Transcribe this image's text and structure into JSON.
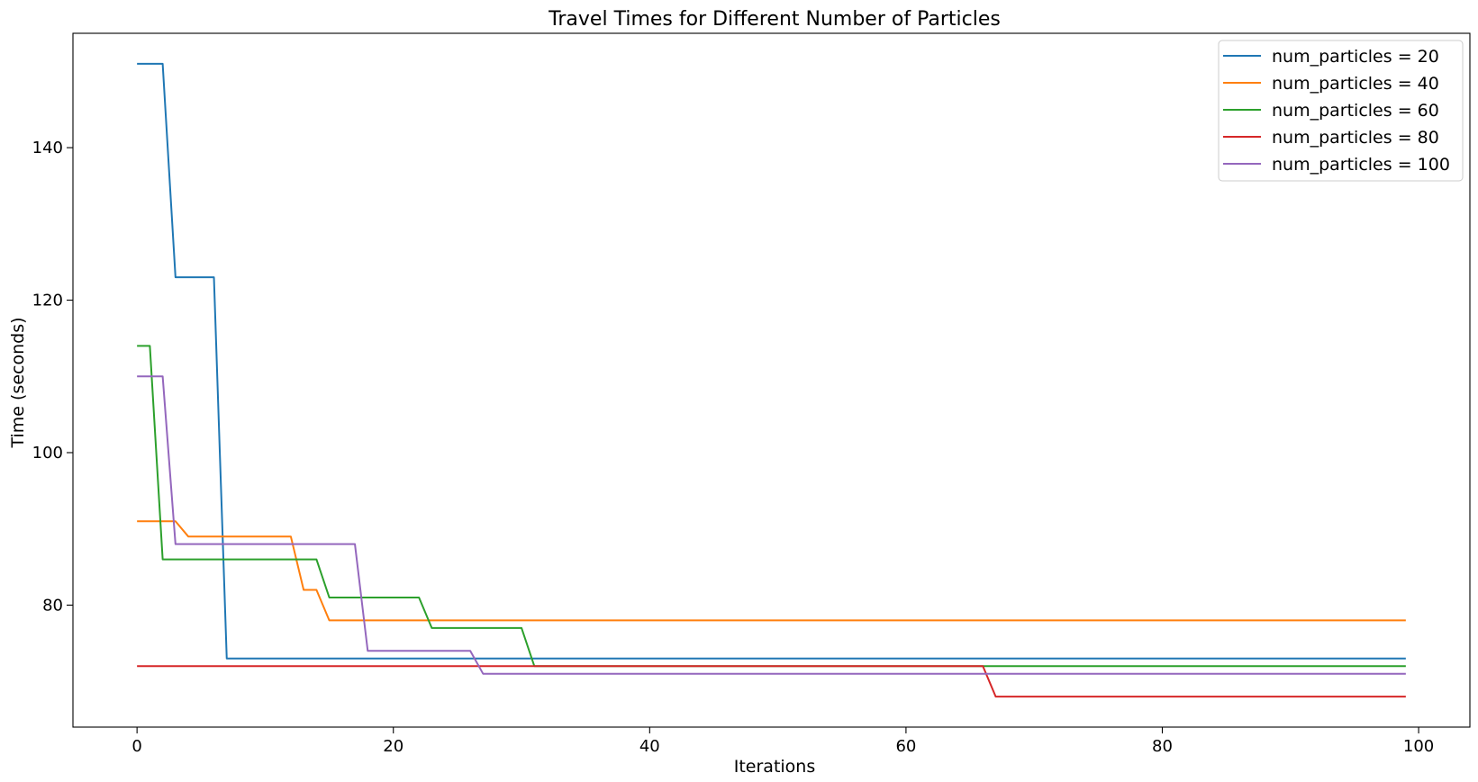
{
  "chart_data": {
    "type": "line",
    "title": "Travel Times for Different Number of Particles",
    "xlabel": "Iterations",
    "ylabel": "Time (seconds)",
    "xlim": [
      -5,
      104
    ],
    "ylim": [
      64,
      155
    ],
    "xticks": [
      0,
      20,
      40,
      60,
      80,
      100
    ],
    "yticks": [
      80,
      100,
      120,
      140
    ],
    "grid": false,
    "legend_position": "top-right",
    "series": [
      {
        "name": "num_particles = 20",
        "color": "#1f77b4",
        "points": [
          [
            0,
            151
          ],
          [
            2,
            151
          ],
          [
            3,
            123
          ],
          [
            6,
            123
          ],
          [
            7,
            73
          ],
          [
            99,
            73
          ]
        ]
      },
      {
        "name": "num_particles = 40",
        "color": "#ff7f0e",
        "points": [
          [
            0,
            91
          ],
          [
            3,
            91
          ],
          [
            4,
            89
          ],
          [
            12,
            89
          ],
          [
            13,
            82
          ],
          [
            14,
            82
          ],
          [
            15,
            78
          ],
          [
            99,
            78
          ]
        ]
      },
      {
        "name": "num_particles = 60",
        "color": "#2ca02c",
        "points": [
          [
            0,
            114
          ],
          [
            1,
            114
          ],
          [
            2,
            86
          ],
          [
            14,
            86
          ],
          [
            15,
            81
          ],
          [
            22,
            81
          ],
          [
            23,
            77
          ],
          [
            30,
            77
          ],
          [
            31,
            72
          ],
          [
            99,
            72
          ]
        ]
      },
      {
        "name": "num_particles = 80",
        "color": "#d62728",
        "points": [
          [
            0,
            72
          ],
          [
            66,
            72
          ],
          [
            67,
            68
          ],
          [
            99,
            68
          ]
        ]
      },
      {
        "name": "num_particles = 100",
        "color": "#9467bd",
        "points": [
          [
            0,
            110
          ],
          [
            2,
            110
          ],
          [
            3,
            88
          ],
          [
            17,
            88
          ],
          [
            18,
            74
          ],
          [
            26,
            74
          ],
          [
            27,
            71
          ],
          [
            99,
            71
          ]
        ]
      }
    ]
  }
}
